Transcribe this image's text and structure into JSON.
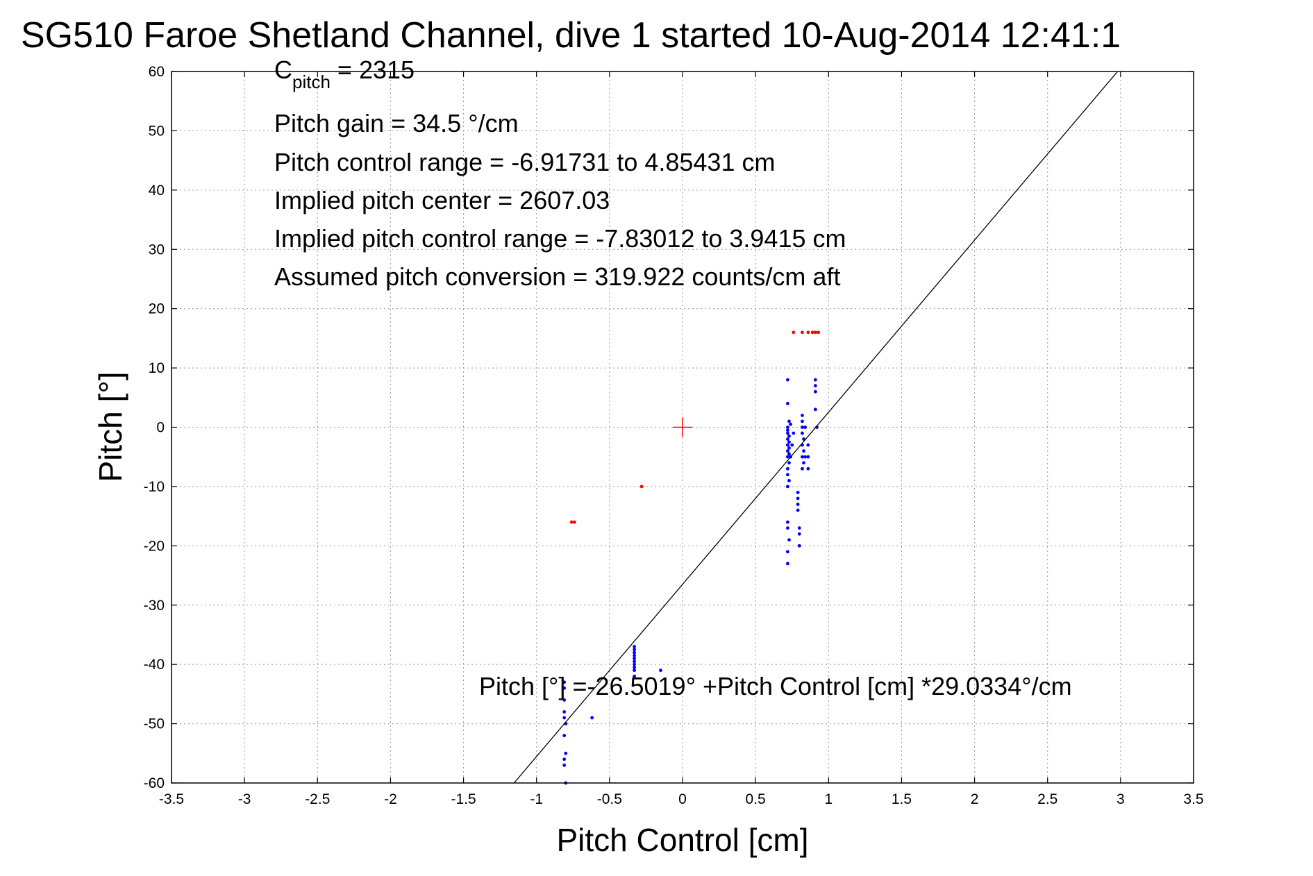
{
  "chart_data": {
    "type": "scatter",
    "title": "SG510 Faroe Shetland Channel, dive 1 started 10-Aug-2014 12:41:1",
    "xlabel": "Pitch Control [cm]",
    "ylabel": "Pitch [°]",
    "xlim": [
      -3.5,
      3.5
    ],
    "ylim": [
      -60,
      60
    ],
    "grid": true,
    "x_ticks": [
      -3.5,
      -3,
      -2.5,
      -2,
      -1.5,
      -1,
      -0.5,
      0,
      0.5,
      1,
      1.5,
      2,
      2.5,
      3,
      3.5
    ],
    "x_tick_labels": [
      "-3.5",
      "-3",
      "-2.5",
      "-2",
      "-1.5",
      "-1",
      "-0.5",
      "0",
      "0.5",
      "1",
      "1.5",
      "2",
      "2.5",
      "3",
      "3.5"
    ],
    "y_ticks": [
      60,
      50,
      40,
      30,
      20,
      10,
      0,
      -10,
      -20,
      -30,
      -40,
      -50,
      -60
    ],
    "y_tick_labels": [
      "60",
      "50",
      "40",
      "30",
      "20",
      "10",
      "0",
      "-10",
      "-20",
      "-30",
      "-40",
      "-50",
      "-60"
    ],
    "annotations": {
      "c_pitch_main": "C",
      "c_pitch_sub": "pitch",
      "c_pitch_value": " = 2315",
      "pitch_gain": "Pitch gain = 34.5 °/cm",
      "pitch_control_range": "Pitch control range = -6.91731 to 4.85431 cm",
      "implied_center": "Implied pitch center = 2607.03",
      "implied_range": "Implied pitch control range = -7.83012 to 3.9415 cm",
      "assumed_conversion": "Assumed pitch conversion = 319.922 counts/cm aft",
      "fit_equation": "Pitch [°] =-26.5019° +Pitch Control [cm] *29.0334°/cm"
    },
    "fit_line": {
      "intercept": -26.5019,
      "slope": 29.0334,
      "color": "#000000"
    },
    "center_marker": {
      "x": 0,
      "y": 0,
      "color": "#ff0000",
      "marker": "+"
    },
    "series": [
      {
        "color": "#0000ff",
        "points": [
          [
            -0.81,
            -44
          ],
          [
            -0.81,
            -46
          ],
          [
            -0.81,
            -48
          ],
          [
            -0.81,
            -49
          ],
          [
            -0.8,
            -50
          ],
          [
            -0.81,
            -52
          ],
          [
            -0.8,
            -55
          ],
          [
            -0.81,
            -56
          ],
          [
            -0.81,
            -57
          ],
          [
            -0.8,
            -60
          ],
          [
            -0.81,
            -43
          ],
          [
            -0.62,
            -49
          ],
          [
            -0.33,
            -37
          ],
          [
            -0.33,
            -37.5
          ],
          [
            -0.33,
            -38
          ],
          [
            -0.33,
            -38.5
          ],
          [
            -0.33,
            -39
          ],
          [
            -0.33,
            -39.5
          ],
          [
            -0.33,
            -40
          ],
          [
            -0.33,
            -40.5
          ],
          [
            -0.33,
            -41
          ],
          [
            -0.33,
            -42
          ],
          [
            -0.15,
            -41
          ],
          [
            0.72,
            8
          ],
          [
            0.72,
            4
          ],
          [
            0.73,
            1
          ],
          [
            0.72,
            0
          ],
          [
            0.72,
            -0.5
          ],
          [
            0.72,
            -1
          ],
          [
            0.73,
            -1.5
          ],
          [
            0.72,
            -2
          ],
          [
            0.73,
            -2.5
          ],
          [
            0.72,
            -3
          ],
          [
            0.73,
            -3.5
          ],
          [
            0.72,
            -4
          ],
          [
            0.73,
            -4.5
          ],
          [
            0.72,
            -5
          ],
          [
            0.73,
            -6
          ],
          [
            0.72,
            -7
          ],
          [
            0.72,
            -8
          ],
          [
            0.73,
            -9
          ],
          [
            0.72,
            -10
          ],
          [
            0.72,
            -16
          ],
          [
            0.72,
            -17
          ],
          [
            0.73,
            -19
          ],
          [
            0.72,
            -21
          ],
          [
            0.72,
            -23
          ],
          [
            0.74,
            -5
          ],
          [
            0.75,
            -3
          ],
          [
            0.74,
            0.5
          ],
          [
            0.76,
            -1
          ],
          [
            0.79,
            -11
          ],
          [
            0.79,
            -12
          ],
          [
            0.79,
            -13
          ],
          [
            0.79,
            -14
          ],
          [
            0.8,
            -17
          ],
          [
            0.8,
            -18
          ],
          [
            0.8,
            -20
          ],
          [
            0.82,
            2
          ],
          [
            0.82,
            1
          ],
          [
            0.82,
            0
          ],
          [
            0.82,
            -1
          ],
          [
            0.83,
            -2
          ],
          [
            0.82,
            -3
          ],
          [
            0.83,
            -4
          ],
          [
            0.82,
            -5
          ],
          [
            0.83,
            -6
          ],
          [
            0.82,
            -7
          ],
          [
            0.84,
            -5
          ],
          [
            0.84,
            0
          ],
          [
            0.86,
            -3
          ],
          [
            0.86,
            -5
          ],
          [
            0.86,
            -7
          ],
          [
            0.91,
            8
          ],
          [
            0.91,
            7
          ],
          [
            0.91,
            6
          ],
          [
            0.91,
            3
          ],
          [
            0.92,
            0
          ]
        ]
      },
      {
        "color": "#ff0000",
        "points": [
          [
            -0.76,
            -16
          ],
          [
            -0.74,
            -16
          ],
          [
            -0.28,
            -10
          ],
          [
            0.76,
            16
          ],
          [
            0.82,
            16
          ],
          [
            0.86,
            16
          ],
          [
            0.89,
            16
          ],
          [
            0.91,
            16
          ],
          [
            0.93,
            16
          ]
        ]
      }
    ]
  }
}
